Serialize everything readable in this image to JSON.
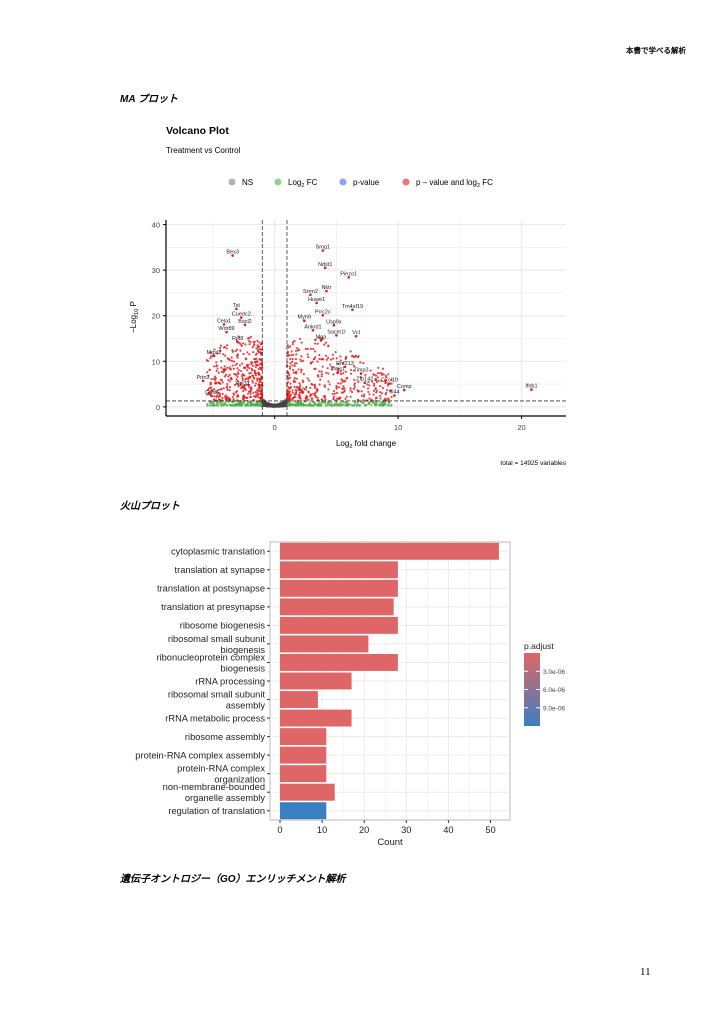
{
  "running_header": "本書で学べる解析",
  "sections": {
    "ma_caption": "MA プロット",
    "volcano_caption": "火山プロット",
    "go_caption": "遺伝子オントロジー（GO）エンリッチメント解析"
  },
  "page_number": "11",
  "chart_data": [
    {
      "type": "scatter",
      "title": "Volcano Plot",
      "subtitle": "Treatment vs Control",
      "xlabel": {
        "pre": "Log",
        "sub": "2",
        "post": " fold change"
      },
      "ylabel": {
        "pre": "−Log",
        "sub": "10",
        "post": " P"
      },
      "xlim": [
        -8.8,
        23.6
      ],
      "ylim": [
        -2,
        41
      ],
      "xticks": [
        "0",
        "10",
        "20"
      ],
      "xtick_values": [
        0,
        10,
        20
      ],
      "yticks": [
        "0",
        "10",
        "20",
        "30",
        "40"
      ],
      "ytick_values": [
        0,
        10,
        20,
        30,
        40
      ],
      "grid": true,
      "legend_position": "top",
      "legend": [
        {
          "pre": "NS",
          "sub": "",
          "post": "",
          "color": "#808080"
        },
        {
          "pre": "Log",
          "sub": "2",
          "post": " FC",
          "color": "#4daf4a"
        },
        {
          "pre": "p-value",
          "sub": "",
          "post": "",
          "color": "#4169e1"
        },
        {
          "pre": "p – value and log",
          "sub": "2",
          "post": " FC",
          "color": "#e41a1c"
        }
      ],
      "fc_cutoff": 1,
      "p_cutoff_log10": 1.3,
      "caption": "total = 14925 variables",
      "labeled_points": [
        {
          "gene": "Bex3",
          "x": -3.4,
          "y": 33.2
        },
        {
          "gene": "Smg1",
          "x": 3.9,
          "y": 34.3
        },
        {
          "gene": "Ndst1",
          "x": 4.1,
          "y": 30.5
        },
        {
          "gene": "Piezo1",
          "x": 6.0,
          "y": 28.4
        },
        {
          "gene": "Nktr",
          "x": 4.2,
          "y": 25.4
        },
        {
          "gene": "Srrm2",
          "x": 2.9,
          "y": 24.6
        },
        {
          "gene": "Huwe1",
          "x": 3.4,
          "y": 22.8
        },
        {
          "gene": "Tm4sf19",
          "x": 6.3,
          "y": 21.3
        },
        {
          "gene": "Tst",
          "x": -3.1,
          "y": 21.5
        },
        {
          "gene": "Cuedc2",
          "x": -2.7,
          "y": 19.6
        },
        {
          "gene": "Prrc2c",
          "x": 3.9,
          "y": 20.1
        },
        {
          "gene": "Cela1",
          "x": -4.1,
          "y": 18.1
        },
        {
          "gene": "Bscl2",
          "x": -2.4,
          "y": 18.0
        },
        {
          "gene": "Myh9",
          "x": 2.4,
          "y": 18.9
        },
        {
          "gene": "Usp9x",
          "x": 4.8,
          "y": 17.9
        },
        {
          "gene": "Wdr89",
          "x": -3.9,
          "y": 16.4
        },
        {
          "gene": "Ankrd1",
          "x": 3.1,
          "y": 16.8
        },
        {
          "gene": "Sacm1l",
          "x": 5.0,
          "y": 15.7
        },
        {
          "gene": "Vcl",
          "x": 6.6,
          "y": 15.5
        },
        {
          "gene": "Mga",
          "x": 3.75,
          "y": 14.6
        },
        {
          "gene": "Rpl8",
          "x": -3.0,
          "y": 14.2
        },
        {
          "gene": "Mgst2",
          "x": -4.9,
          "y": 11.2
        },
        {
          "gene": "Rnf213",
          "x": 5.7,
          "y": 8.8
        },
        {
          "gene": "Thbs1",
          "x": 5.1,
          "y": 7.5
        },
        {
          "gene": "Timp3",
          "x": 7.0,
          "y": 7.3
        },
        {
          "gene": "Zfp142",
          "x": 7.3,
          "y": 5.3
        },
        {
          "gene": "Cxcl10",
          "x": 9.3,
          "y": 5.1
        },
        {
          "gene": "Prtn3",
          "x": -5.8,
          "y": 5.7
        },
        {
          "gene": "Rpl31",
          "x": -2.6,
          "y": 4.4
        },
        {
          "gene": "Comp",
          "x": 10.5,
          "y": 3.7
        },
        {
          "gene": "Ifnb1",
          "x": 20.8,
          "y": 3.8
        },
        {
          "gene": "Fn1",
          "x": 2.3,
          "y": 3.2
        },
        {
          "gene": "Ifi44",
          "x": 9.7,
          "y": 2.5
        },
        {
          "gene": "G0s2",
          "x": -5.1,
          "y": 2.4
        }
      ]
    },
    {
      "type": "bar",
      "orientation": "horizontal",
      "xlabel": "Count",
      "xlim": [
        0,
        53
      ],
      "xticks": [
        "0",
        "10",
        "20",
        "30",
        "40",
        "50"
      ],
      "xtick_values": [
        0,
        10,
        20,
        30,
        40,
        50
      ],
      "grid": true,
      "legend_position": "right",
      "legend": {
        "title": "p.adjust",
        "range": [
          0,
          1.2e-05
        ],
        "low_color": "#e06666",
        "high_color": "#3a7fc1",
        "ticks": [
          "3.0e-06",
          "6.0e-06",
          "9.0e-06"
        ],
        "tick_values": [
          3e-06,
          6e-06,
          9e-06
        ]
      },
      "categories": [
        [
          "cytoplasmic translation"
        ],
        [
          "translation at synapse"
        ],
        [
          "translation at postsynapse"
        ],
        [
          "translation at presynapse"
        ],
        [
          "ribosome biogenesis"
        ],
        [
          "ribosomal small subunit",
          "biogenesis"
        ],
        [
          "ribonucleoprotein complex",
          "biogenesis"
        ],
        [
          "rRNA processing"
        ],
        [
          "ribosomal small subunit",
          "assembly"
        ],
        [
          "rRNA metabolic process"
        ],
        [
          "ribosome assembly"
        ],
        [
          "protein-RNA complex assembly"
        ],
        [
          "protein-RNA complex",
          "organization"
        ],
        [
          "non-membrane-bounded",
          "organelle assembly"
        ],
        [
          "regulation of translation"
        ]
      ],
      "values": [
        52,
        28,
        28,
        27,
        28,
        21,
        28,
        17,
        9,
        17,
        11,
        11,
        11,
        13,
        11
      ],
      "p_adjust": [
        1e-07,
        1e-07,
        1e-07,
        1e-07,
        1e-07,
        1e-07,
        1e-07,
        1e-07,
        1e-07,
        1e-07,
        1e-07,
        1e-07,
        1e-07,
        1e-07,
        1.2e-05
      ]
    }
  ]
}
